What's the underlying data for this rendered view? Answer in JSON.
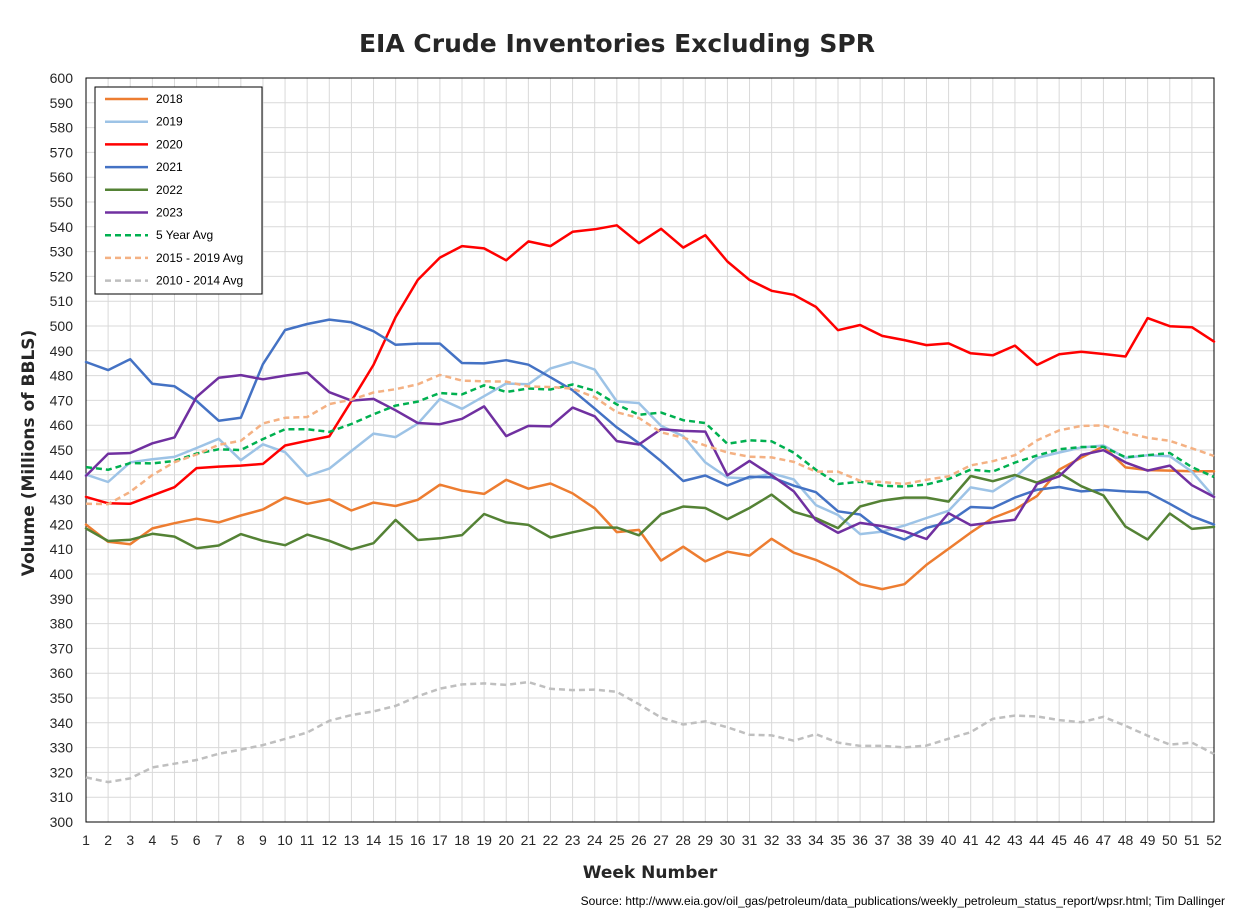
{
  "chart_data": {
    "type": "line",
    "title": "EIA Crude Inventories Excluding SPR",
    "xlabel": "Week Number",
    "ylabel": "Volume (Millions of BBLS)",
    "source": "Source: http://www.eia.gov/oil_gas/petroleum/data_publications/weekly_petroleum_status_report/wpsr.html; Tim Dallinger",
    "xlim": [
      1,
      52
    ],
    "ylim": [
      300,
      600
    ],
    "ytick_step": 10,
    "grid": true,
    "legend_position": "top-left",
    "x": [
      1,
      2,
      3,
      4,
      5,
      6,
      7,
      8,
      9,
      10,
      11,
      12,
      13,
      14,
      15,
      16,
      17,
      18,
      19,
      20,
      21,
      22,
      23,
      24,
      25,
      26,
      27,
      28,
      29,
      30,
      31,
      32,
      33,
      34,
      35,
      36,
      37,
      38,
      39,
      40,
      41,
      42,
      43,
      44,
      45,
      46,
      47,
      48,
      49,
      50,
      51,
      52
    ],
    "series": [
      {
        "name": "2018",
        "color": "#ED7D31",
        "dash": "solid",
        "values": [
          419.9,
          413,
          412,
          418.4,
          420.5,
          422.3,
          420.8,
          423.6,
          426,
          430.9,
          428.3,
          430.1,
          425.6,
          428.8,
          427.4,
          429.9,
          436,
          433.6,
          432.3,
          438,
          434.4,
          436.5,
          432.5,
          426.5,
          416.9,
          417.8,
          405.4,
          411,
          405.1,
          409,
          407.4,
          414.2,
          408.6,
          405.7,
          401.5,
          395.9,
          393.9,
          395.9,
          403.7,
          410.2,
          416.7,
          422.6,
          426,
          431.5,
          442.1,
          446.9,
          451.5,
          443,
          441.9,
          441.7,
          441.4,
          441.4
        ]
      },
      {
        "name": "2019",
        "color": "#9DC3E6",
        "dash": "solid",
        "values": [
          440.1,
          437.1,
          445,
          446.3,
          447.2,
          450.8,
          454.5,
          445.9,
          452.3,
          449.1,
          439.5,
          442.5,
          449.6,
          456.6,
          455.2,
          460.6,
          470.6,
          466.6,
          471.7,
          476.8,
          476.5,
          482.9,
          485.5,
          482.4,
          469.6,
          468.9,
          459.7,
          455.6,
          445,
          438.9,
          438.5,
          440.6,
          438.1,
          427.8,
          423.8,
          416.1,
          417.1,
          419.5,
          422.6,
          425.5,
          434.9,
          433.3,
          439,
          446.8,
          449,
          451,
          451.8,
          446.8,
          447.9,
          447.5,
          441.3,
          431.1
        ]
      },
      {
        "name": "2020",
        "color": "#FF0000",
        "dash": "solid",
        "values": [
          431.1,
          428.5,
          428.3,
          431.7,
          435,
          442.7,
          443.3,
          443.7,
          444.4,
          451.8,
          453.7,
          455.5,
          469.7,
          484.3,
          503.6,
          518.6,
          527.6,
          532.2,
          531.3,
          526.5,
          534.1,
          532.2,
          538,
          539,
          540.6,
          533.4,
          539.2,
          531.6,
          536.6,
          526,
          518.6,
          514.2,
          512.6,
          507.7,
          498.3,
          500.4,
          496,
          494.3,
          492.3,
          493,
          489,
          488.2,
          492.1,
          484.3,
          488.6,
          489.6,
          488.7,
          487.7,
          503.2,
          499.9,
          499.5,
          493.7
        ]
      },
      {
        "name": "2021",
        "color": "#4472C4",
        "dash": "solid",
        "values": [
          485.5,
          482.2,
          486.6,
          476.7,
          475.7,
          469.8,
          461.8,
          463,
          484.6,
          498.4,
          500.8,
          502.6,
          501.5,
          497.9,
          492.4,
          492.9,
          492.9,
          485.1,
          484.9,
          486.2,
          484.4,
          479.3,
          474.1,
          466.7,
          459.1,
          452.8,
          445.5,
          437.5,
          439.7,
          435.7,
          439.2,
          439,
          435.6,
          433,
          425.3,
          424,
          417.1,
          413.9,
          418.6,
          420.9,
          427,
          426.6,
          430.8,
          434,
          435.1,
          433.3,
          433.9,
          433.3,
          433,
          428.3,
          423.3,
          419.9
        ]
      },
      {
        "name": "2022",
        "color": "#548235",
        "dash": "solid",
        "values": [
          418.4,
          413.3,
          413.8,
          416.2,
          415.1,
          410.4,
          411.5,
          416.1,
          413.4,
          411.6,
          415.9,
          413.4,
          409.9,
          412.4,
          421.8,
          413.7,
          414.4,
          415.7,
          424.2,
          420.8,
          419.8,
          414.7,
          416.8,
          418.7,
          418.7,
          415.6,
          424.1,
          427.2,
          426.6,
          422.1,
          426.6,
          432,
          425.1,
          422.5,
          418.5,
          427.2,
          429.6,
          430.8,
          430.8,
          429.2,
          439.5,
          437.4,
          439.9,
          436.8,
          440.8,
          435.4,
          431.7,
          419.1,
          413.9,
          424.4,
          418.2,
          419
        ]
      },
      {
        "name": "2023",
        "color": "#7030A0",
        "dash": "solid",
        "values": [
          439.6,
          448.5,
          448.8,
          452.7,
          455.1,
          471.4,
          479.1,
          480.2,
          478.5,
          480,
          481.2,
          473.3,
          469.9,
          470.6,
          466,
          460.9,
          460.4,
          462.6,
          467.6,
          455.6,
          459.7,
          459.5,
          467.1,
          463.6,
          453.6,
          452.2,
          458.4,
          457.7,
          457.4,
          439.8,
          445.6,
          439.8,
          433.3,
          421.7,
          416.6,
          420.6,
          419.3,
          417.2,
          414.1,
          424.5,
          419.7,
          420.8,
          421.9,
          436.3,
          439.4,
          448,
          449.9,
          445,
          441.7,
          443.7,
          435.8,
          431.1
        ]
      },
      {
        "name": "5 Year Avg",
        "color": "#00B050",
        "dash": "dashed",
        "values": [
          443.1,
          442,
          444.7,
          444.6,
          445.6,
          448.6,
          450.3,
          450,
          454.4,
          458.4,
          458.4,
          457.3,
          460.5,
          464.4,
          467.9,
          469.5,
          473,
          472.4,
          476.1,
          473.4,
          474.8,
          474.4,
          476.4,
          473.9,
          468.4,
          464.2,
          465.1,
          462,
          460.9,
          452.5,
          453.9,
          453.5,
          448.9,
          442,
          436.3,
          437.2,
          435.6,
          435.3,
          436.1,
          438.3,
          442.1,
          441.3,
          444.9,
          447.8,
          450.3,
          451.2,
          451.3,
          447.1,
          447.9,
          448.8,
          443.1,
          439.1
        ]
      },
      {
        "name": "2015 - 2019 Avg",
        "color": "#F4B183",
        "dash": "dashed",
        "values": [
          428.3,
          428.2,
          433.1,
          439.9,
          445.1,
          448.2,
          452.1,
          453.7,
          460.7,
          463,
          463.3,
          468.5,
          470.3,
          473.2,
          474.5,
          476.5,
          480.3,
          478,
          477.7,
          477.6,
          475.6,
          475.4,
          474.7,
          471.3,
          465.2,
          462.9,
          457.1,
          455,
          451.8,
          449,
          447.3,
          447,
          445.2,
          441.3,
          441.3,
          437.6,
          437.1,
          436.3,
          438,
          439.4,
          443.8,
          445.5,
          447.9,
          453.9,
          457.9,
          459.7,
          459.9,
          457,
          454.9,
          453.7,
          450.7,
          447.6
        ]
      },
      {
        "name": "2010 - 2014 Avg",
        "color": "#BFBFBF",
        "dash": "dashed",
        "values": [
          318,
          316.1,
          317.6,
          322,
          323.5,
          325,
          327.5,
          329.2,
          331,
          333.5,
          336.1,
          340.8,
          343.1,
          344.6,
          346.8,
          350.7,
          353.8,
          355.5,
          355.9,
          355.3,
          356.4,
          353.7,
          353.2,
          353.4,
          352.5,
          347.5,
          342.1,
          339.3,
          340.6,
          338.2,
          335.2,
          334.9,
          332.8,
          335.4,
          332,
          330.7,
          330.7,
          330.1,
          330.8,
          333.6,
          336.2,
          341.6,
          342.9,
          342.6,
          341.1,
          340.2,
          342.4,
          338.8,
          334.8,
          331.2,
          332,
          327.4
        ]
      }
    ]
  }
}
